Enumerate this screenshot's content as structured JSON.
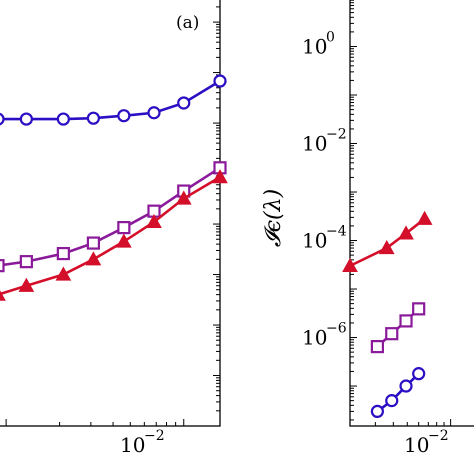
{
  "chart_data": [
    {
      "panel_label": "(a)",
      "type": "line",
      "xscale": "log",
      "yscale": "log",
      "x_ticks": [
        {
          "value": 0.01,
          "base": "10",
          "exp": "−2"
        }
      ],
      "y_ticks": [],
      "xlim": [
        0.0009,
        0.016
      ],
      "ylim": [
        1e-07,
        30
      ],
      "grid": false,
      "series": [
        {
          "marker": "circle",
          "color": "#2a0fc4",
          "x": [
            0.0009,
            0.0013,
            0.0021,
            0.0031,
            0.0046,
            0.0068,
            0.01,
            0.016
          ],
          "y": [
            0.12,
            0.12,
            0.12,
            0.125,
            0.14,
            0.16,
            0.25,
            0.68
          ]
        },
        {
          "marker": "square",
          "color": "#8a1a9a",
          "x": [
            0.0009,
            0.0013,
            0.0021,
            0.0031,
            0.0046,
            0.0068,
            0.01,
            0.016
          ],
          "y": [
            0.00015,
            0.00018,
            0.00026,
            0.00042,
            0.00085,
            0.0018,
            0.0045,
            0.013
          ]
        },
        {
          "marker": "triangle",
          "color": "#d40f2a",
          "x": [
            0.0009,
            0.0013,
            0.0021,
            0.0031,
            0.0046,
            0.0068,
            0.01,
            0.016
          ],
          "y": [
            4e-05,
            6e-05,
            0.0001,
            0.0002,
            0.00045,
            0.0011,
            0.0032,
            0.0085
          ]
        }
      ]
    },
    {
      "type": "line",
      "xscale": "log",
      "yscale": "log",
      "ylabel": "𝓘ϵ(λ)",
      "y_ticks": [
        {
          "value": 1,
          "base": "10",
          "exp": "0"
        },
        {
          "value": 0.01,
          "base": "10",
          "exp": "−2"
        },
        {
          "value": 0.0001,
          "base": "10",
          "exp": "−4"
        },
        {
          "value": 1e-06,
          "base": "10",
          "exp": "−6"
        }
      ],
      "x_ticks": [
        {
          "value": 0.01,
          "base": "10",
          "exp": "−2"
        }
      ],
      "xlim": [
        0.002,
        0.016
      ],
      "ylim": [
        1.5e-08,
        10
      ],
      "grid": false,
      "series": [
        {
          "marker": "triangle",
          "color": "#d40f2a",
          "x": [
            0.002,
            0.0036,
            0.0049,
            0.0066
          ],
          "y": [
            3e-05,
            7e-05,
            0.00014,
            0.00028
          ]
        },
        {
          "marker": "square",
          "color": "#8a1a9a",
          "x": [
            0.0031,
            0.0039,
            0.0049,
            0.006
          ],
          "y": [
            6.5e-07,
            1.2e-06,
            2.2e-06,
            3.9e-06
          ]
        },
        {
          "marker": "circle",
          "color": "#2a0fc4",
          "x": [
            0.0031,
            0.0039,
            0.0049,
            0.006
          ],
          "y": [
            3e-08,
            5e-08,
            1e-07,
            1.8e-07
          ]
        }
      ]
    }
  ]
}
